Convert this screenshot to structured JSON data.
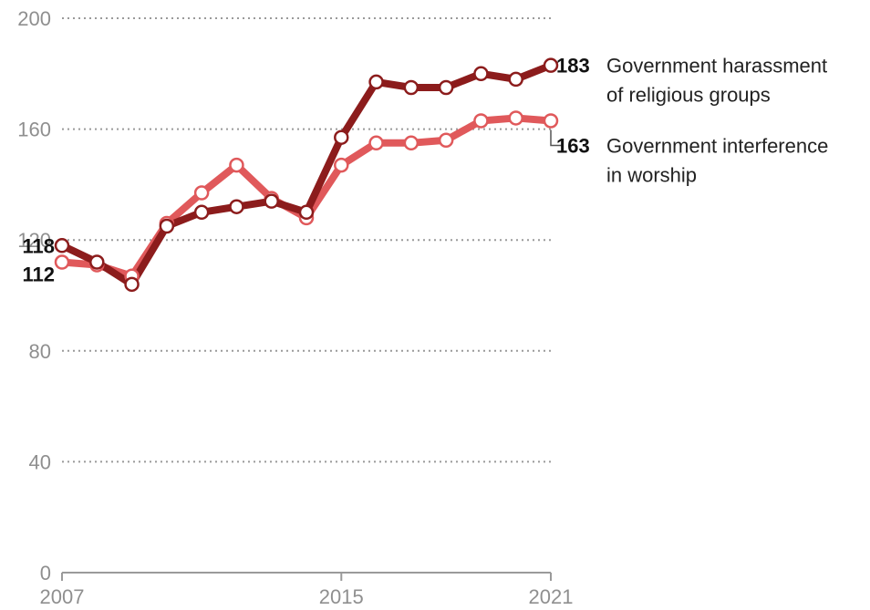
{
  "chart_data": {
    "type": "line",
    "x": [
      2007,
      2008,
      2009,
      2010,
      2011,
      2012,
      2013,
      2014,
      2015,
      2016,
      2017,
      2018,
      2019,
      2020,
      2021
    ],
    "yticks": [
      0,
      40,
      80,
      120,
      160,
      200
    ],
    "xticks": [
      2007,
      2015,
      2021
    ],
    "ylim": [
      0,
      200
    ],
    "grid": true,
    "series": [
      {
        "name": "Government harassment of religious groups",
        "label_lines": [
          "Government harassment",
          "of religious groups"
        ],
        "color": "#8c1c1c",
        "values": [
          118,
          112,
          104,
          125,
          130,
          132,
          134,
          130,
          157,
          177,
          175,
          175,
          180,
          178,
          183
        ],
        "start_label": "118",
        "end_label": "183"
      },
      {
        "name": "Government interference in worship",
        "label_lines": [
          "Government interference",
          "in worship"
        ],
        "color": "#e0595b",
        "values": [
          112,
          111,
          107,
          126,
          137,
          147,
          135,
          128,
          147,
          155,
          155,
          156,
          163,
          164,
          163
        ],
        "start_label": "112",
        "end_label": "163"
      }
    ]
  }
}
